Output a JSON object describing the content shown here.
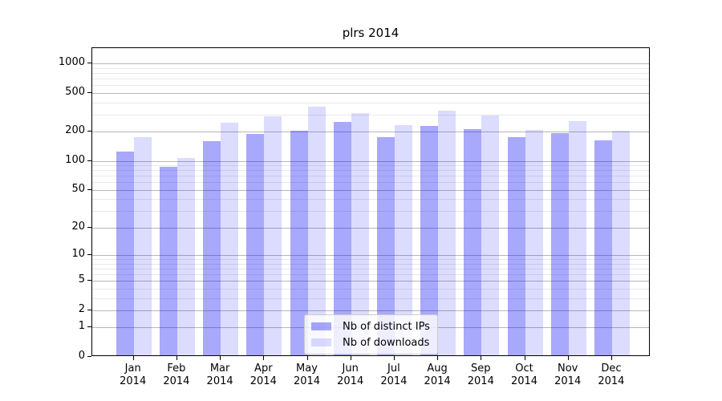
{
  "chart_data": {
    "type": "bar",
    "title": "plrs 2014",
    "x_tick_year": "2014",
    "categories": [
      "Jan",
      "Feb",
      "Mar",
      "Apr",
      "May",
      "Jun",
      "Jul",
      "Aug",
      "Sep",
      "Oct",
      "Nov",
      "Dec"
    ],
    "series": [
      {
        "name": "Nb of distinct IPs",
        "color": "rgba(0,0,245,0.34)",
        "values": [
          120,
          84,
          154,
          182,
          196,
          242,
          168,
          221,
          205,
          168,
          187,
          157
        ]
      },
      {
        "name": "Nb of downloads",
        "color": "rgba(20,20,245,0.15)",
        "values": [
          168,
          104,
          239,
          276,
          350,
          300,
          224,
          316,
          280,
          202,
          246,
          195
        ]
      }
    ],
    "scale": "log1p",
    "ylim": [
      0,
      1434
    ],
    "y_major_ticks": [
      0,
      1,
      2,
      5,
      10,
      20,
      50,
      100,
      200,
      500,
      1000
    ],
    "y_minor_gridlines": [
      3,
      4,
      6,
      7,
      8,
      9,
      30,
      40,
      60,
      70,
      80,
      90,
      300,
      400,
      600,
      700,
      800,
      900
    ],
    "grid": true,
    "legend_position": "lower center",
    "colors": {
      "major_grid": "#b8b8b8",
      "minor_grid": "#e8e8e8",
      "axis": "#000000",
      "text": "#000000",
      "legend_bg": "rgba(255,255,255,0.8)",
      "legend_border": "#cccccc"
    }
  }
}
